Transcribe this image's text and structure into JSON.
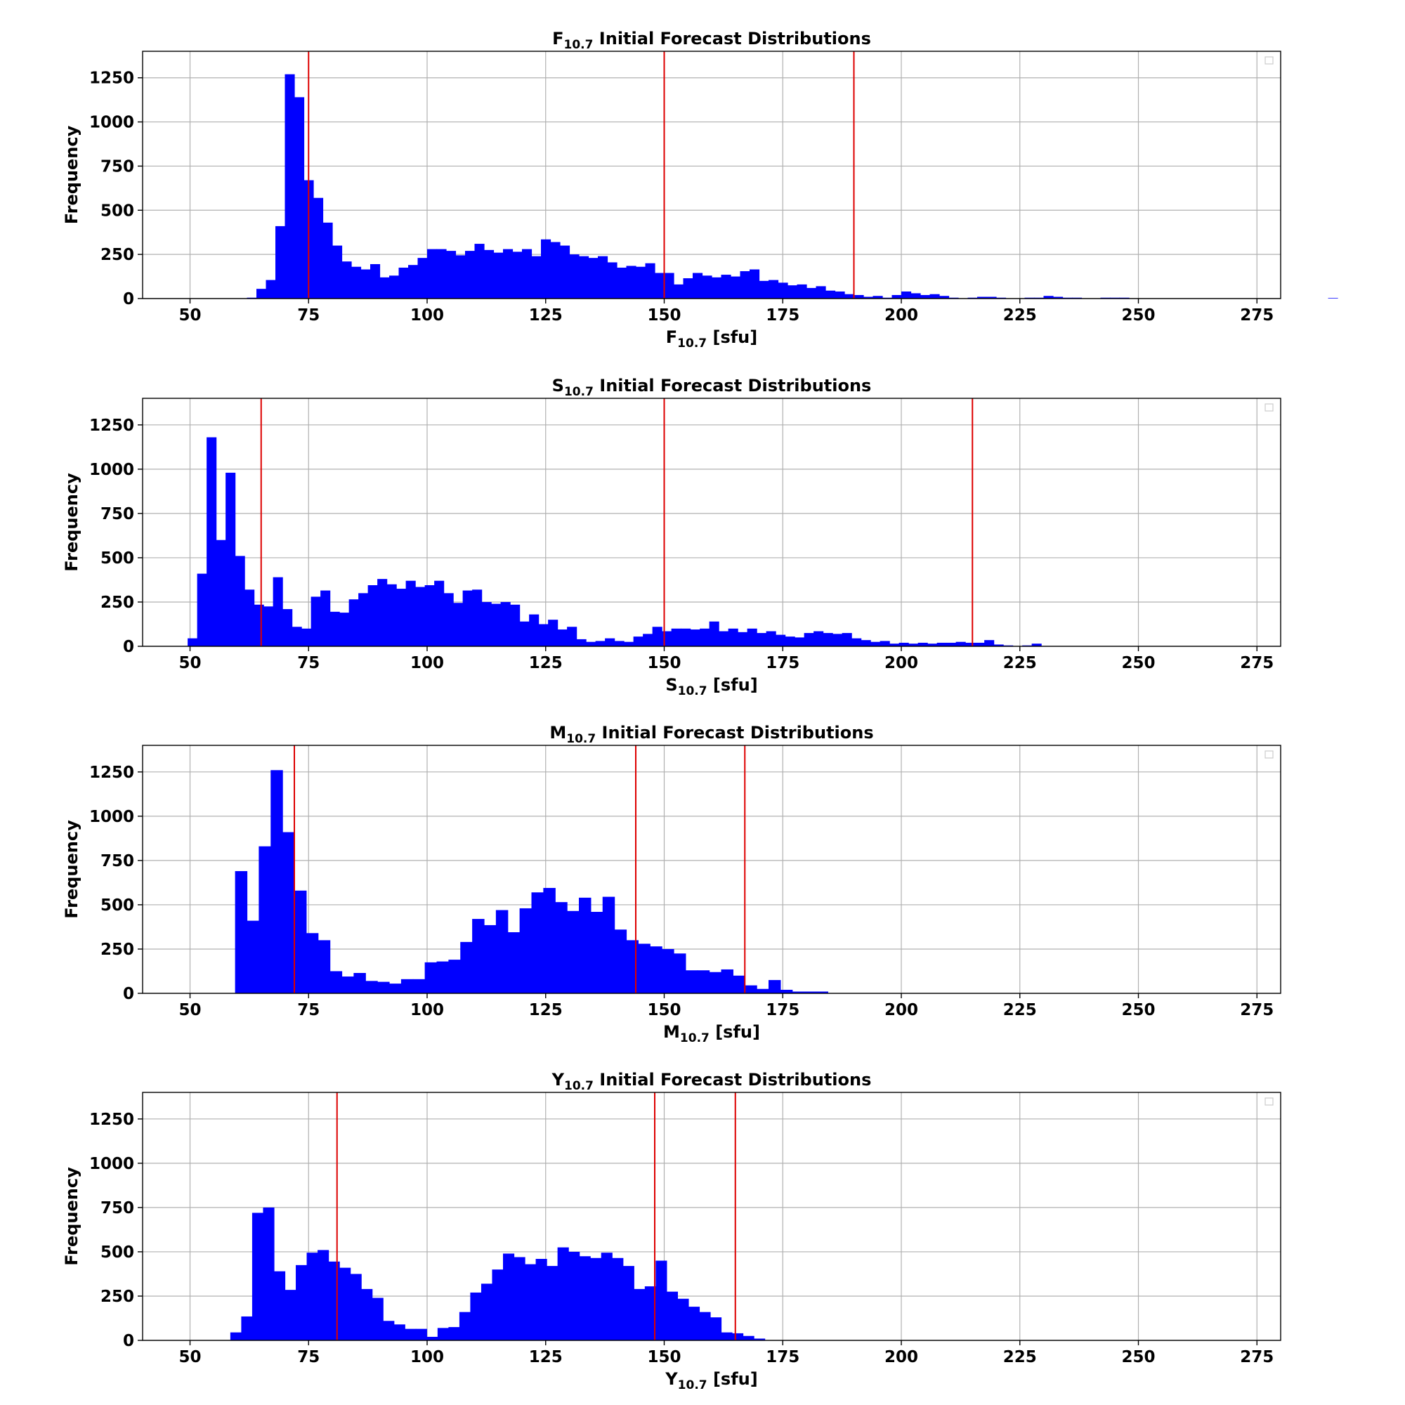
{
  "chart_data": [
    {
      "type": "bar",
      "title": {
        "main": "F",
        "sub": "10.7",
        "rest": " Initial Forecast Distributions"
      },
      "xlabel": {
        "main": "F",
        "sub": "10.7",
        "rest": " [sfu]"
      },
      "ylabel": "Frequency",
      "xlim": [
        40,
        280
      ],
      "ylim": [
        0,
        1400
      ],
      "xticks": [
        50,
        75,
        100,
        125,
        150,
        175,
        200,
        225,
        250,
        275
      ],
      "yticks": [
        0,
        250,
        500,
        750,
        1000,
        1250
      ],
      "grid": true,
      "legend": "top-right",
      "bar_color": "#0000ff",
      "line_color": "#dd0000",
      "vlines": [
        75,
        150,
        190
      ],
      "bins": {
        "start": 62,
        "width": 2
      },
      "values": [
        5,
        55,
        105,
        410,
        1270,
        1140,
        670,
        570,
        430,
        300,
        210,
        180,
        165,
        195,
        120,
        130,
        175,
        190,
        230,
        280,
        280,
        270,
        245,
        270,
        310,
        275,
        260,
        280,
        265,
        280,
        240,
        335,
        320,
        300,
        250,
        240,
        230,
        240,
        205,
        175,
        185,
        180,
        200,
        145,
        145,
        80,
        115,
        145,
        130,
        120,
        135,
        125,
        155,
        165,
        100,
        105,
        90,
        75,
        80,
        60,
        70,
        45,
        40,
        25,
        20,
        10,
        15,
        5,
        20,
        40,
        30,
        20,
        25,
        15,
        5,
        0,
        5,
        10,
        10,
        5,
        0,
        0,
        5,
        5,
        15,
        10,
        5,
        5,
        0,
        0,
        5,
        5,
        5,
        0,
        0,
        0,
        0,
        0,
        0,
        0,
        0,
        0,
        0,
        0,
        0,
        0,
        0,
        0,
        0,
        0,
        0,
        0,
        0,
        0,
        3
      ]
    },
    {
      "type": "bar",
      "title": {
        "main": "S",
        "sub": "10.7",
        "rest": " Initial Forecast Distributions"
      },
      "xlabel": {
        "main": "S",
        "sub": "10.7",
        "rest": " [sfu]"
      },
      "ylabel": "Frequency",
      "xlim": [
        40,
        280
      ],
      "ylim": [
        0,
        1400
      ],
      "xticks": [
        50,
        75,
        100,
        125,
        150,
        175,
        200,
        225,
        250,
        275
      ],
      "yticks": [
        0,
        250,
        500,
        750,
        1000,
        1250
      ],
      "grid": true,
      "legend": "top-right",
      "bar_color": "#0000ff",
      "line_color": "#dd0000",
      "vlines": [
        65,
        150,
        215
      ],
      "bins": {
        "start": 49.5,
        "width": 2
      },
      "values": [
        45,
        410,
        1180,
        600,
        980,
        510,
        320,
        235,
        225,
        390,
        210,
        110,
        100,
        280,
        315,
        195,
        190,
        265,
        300,
        345,
        380,
        350,
        325,
        370,
        335,
        345,
        370,
        300,
        245,
        315,
        320,
        250,
        240,
        250,
        235,
        140,
        180,
        125,
        150,
        95,
        110,
        40,
        25,
        30,
        45,
        30,
        25,
        55,
        70,
        110,
        85,
        100,
        100,
        95,
        100,
        140,
        85,
        100,
        80,
        100,
        75,
        85,
        65,
        55,
        50,
        75,
        85,
        75,
        70,
        75,
        45,
        35,
        25,
        30,
        15,
        20,
        15,
        20,
        15,
        20,
        20,
        25,
        20,
        20,
        35,
        10,
        5,
        0,
        5,
        15
      ]
    },
    {
      "type": "bar",
      "title": {
        "main": "M",
        "sub": "10.7",
        "rest": " Initial Forecast Distributions"
      },
      "xlabel": {
        "main": "M",
        "sub": "10.7",
        "rest": " [sfu]"
      },
      "ylabel": "Frequency",
      "xlim": [
        40,
        280
      ],
      "ylim": [
        0,
        1400
      ],
      "xticks": [
        50,
        75,
        100,
        125,
        150,
        175,
        200,
        225,
        250,
        275
      ],
      "yticks": [
        0,
        250,
        500,
        750,
        1000,
        1250
      ],
      "grid": true,
      "legend": "top-right",
      "bar_color": "#0000ff",
      "line_color": "#dd0000",
      "vlines": [
        72,
        144,
        167
      ],
      "bins": {
        "start": 59.5,
        "width": 2.5
      },
      "values": [
        690,
        410,
        830,
        1260,
        910,
        580,
        340,
        300,
        125,
        95,
        115,
        70,
        65,
        55,
        80,
        80,
        175,
        180,
        190,
        290,
        420,
        385,
        470,
        345,
        480,
        570,
        595,
        515,
        465,
        540,
        460,
        545,
        360,
        300,
        280,
        265,
        250,
        225,
        130,
        130,
        120,
        135,
        100,
        45,
        25,
        75,
        20,
        10,
        10,
        10
      ]
    },
    {
      "type": "bar",
      "title": {
        "main": "Y",
        "sub": "10.7",
        "rest": " Initial Forecast Distributions"
      },
      "xlabel": {
        "main": "Y",
        "sub": "10.7",
        "rest": " [sfu]"
      },
      "ylabel": "Frequency",
      "xlim": [
        40,
        280
      ],
      "ylim": [
        0,
        1400
      ],
      "xticks": [
        50,
        75,
        100,
        125,
        150,
        175,
        200,
        225,
        250,
        275
      ],
      "yticks": [
        0,
        250,
        500,
        750,
        1000,
        1250
      ],
      "grid": true,
      "legend": "top-right",
      "bar_color": "#0000ff",
      "line_color": "#dd0000",
      "vlines": [
        81,
        148,
        165
      ],
      "bins": {
        "start": 58.5,
        "width": 2.3
      },
      "values": [
        45,
        135,
        720,
        750,
        390,
        285,
        425,
        495,
        510,
        445,
        410,
        375,
        290,
        240,
        110,
        90,
        65,
        65,
        20,
        70,
        75,
        160,
        270,
        320,
        400,
        490,
        470,
        430,
        460,
        420,
        525,
        500,
        475,
        465,
        495,
        465,
        420,
        290,
        305,
        450,
        275,
        235,
        190,
        160,
        130,
        45,
        40,
        25,
        10
      ]
    }
  ]
}
